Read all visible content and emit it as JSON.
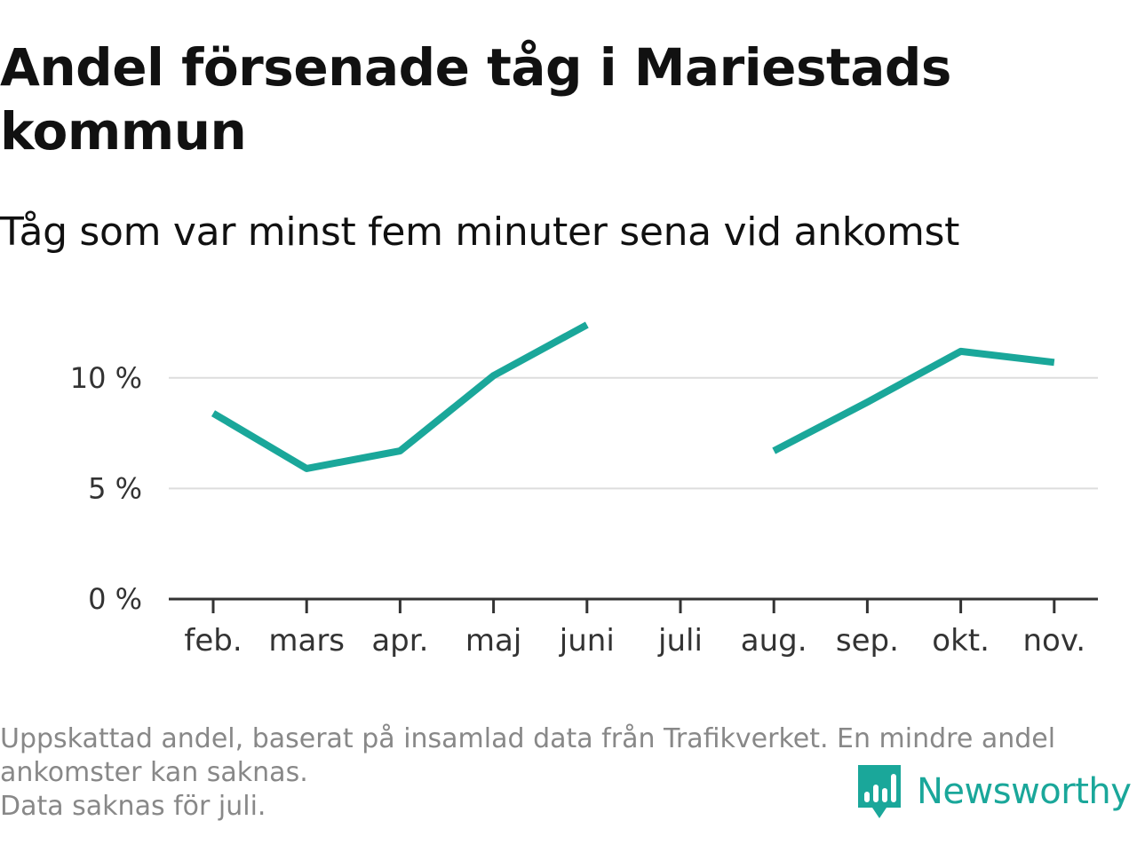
{
  "title": "Andel försenade tåg i Mariestads kommun",
  "subtitle": "Tåg som var minst fem minuter sena vid ankomst",
  "footnote": {
    "line1": "Uppskattad andel, baserat på insamlad data från Trafikverket. En mindre andel ankomster kan saknas.",
    "line2": "Data saknas för juli."
  },
  "brand": {
    "name": "Newsworthy",
    "logo_icon": "newsworthy-bar-chart-bubble-icon",
    "color": "#1aa79a"
  },
  "colors": {
    "series": "#1aa79a",
    "grid": "#dddddd",
    "axis": "#333333"
  },
  "chart_data": {
    "type": "line",
    "categories": [
      "feb.",
      "mars",
      "apr.",
      "maj",
      "juni",
      "juli",
      "aug.",
      "sep.",
      "okt.",
      "nov."
    ],
    "series": [
      {
        "values": [
          8.4,
          5.9,
          6.7,
          10.1,
          12.4,
          null,
          6.7,
          8.9,
          11.2,
          10.7
        ]
      }
    ],
    "y_ticks": [
      0,
      5,
      10
    ],
    "y_tick_labels": [
      "0 %",
      "5 %",
      "10 %"
    ],
    "ylim": [
      0,
      13
    ],
    "grid": true
  }
}
